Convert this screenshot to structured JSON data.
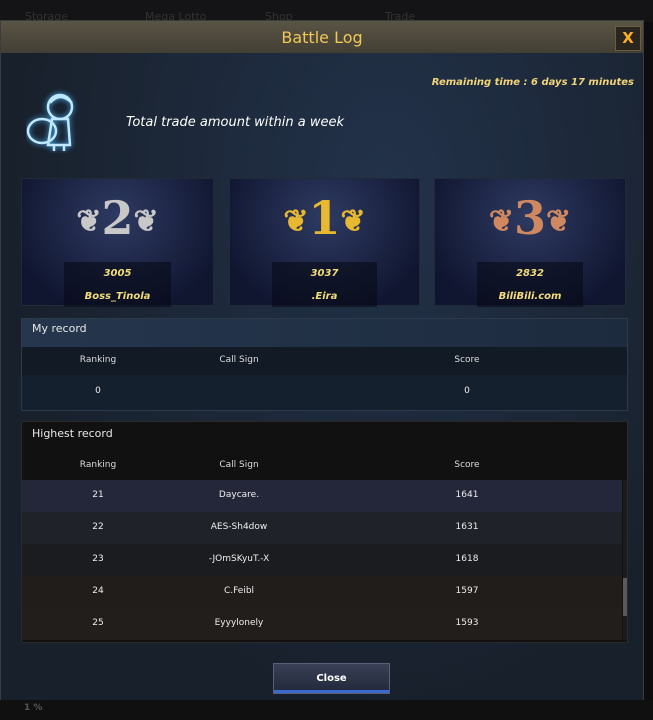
{
  "background_tabs": [
    "Storage",
    "Mega Lotto",
    "Shop",
    "Trade"
  ],
  "dialog": {
    "title": "Battle Log",
    "close_icon": "X",
    "remaining_time": "Remaining time : 6 days 17 minutes",
    "event_title": "Total trade amount within a week"
  },
  "podium": [
    {
      "rank": "2",
      "score": "3005",
      "name": "Boss_Tinola",
      "color": "#c8c8c8"
    },
    {
      "rank": "1",
      "score": "3037",
      "name": ".Eira",
      "color": "#e8b830"
    },
    {
      "rank": "3",
      "score": "2832",
      "name": "BiliBili.com",
      "color": "#d08860"
    }
  ],
  "my_record": {
    "label": "My record",
    "columns": [
      "Ranking",
      "Call Sign",
      "Score"
    ],
    "row": {
      "ranking": "0",
      "call_sign": "",
      "score": "0"
    }
  },
  "highest_record": {
    "label": "Highest record",
    "columns": [
      "Ranking",
      "Call Sign",
      "Score"
    ],
    "rows": [
      {
        "ranking": "21",
        "call_sign": "Daycare.",
        "score": "1641"
      },
      {
        "ranking": "22",
        "call_sign": "AES-Sh4dow",
        "score": "1631"
      },
      {
        "ranking": "23",
        "call_sign": "-JOmSKyuT.-X",
        "score": "1618"
      },
      {
        "ranking": "24",
        "call_sign": "C.Feibl",
        "score": "1597"
      },
      {
        "ranking": "25",
        "call_sign": "Eyyylonely",
        "score": "1593"
      }
    ]
  },
  "close_label": "Close",
  "status_percent": "1 %"
}
